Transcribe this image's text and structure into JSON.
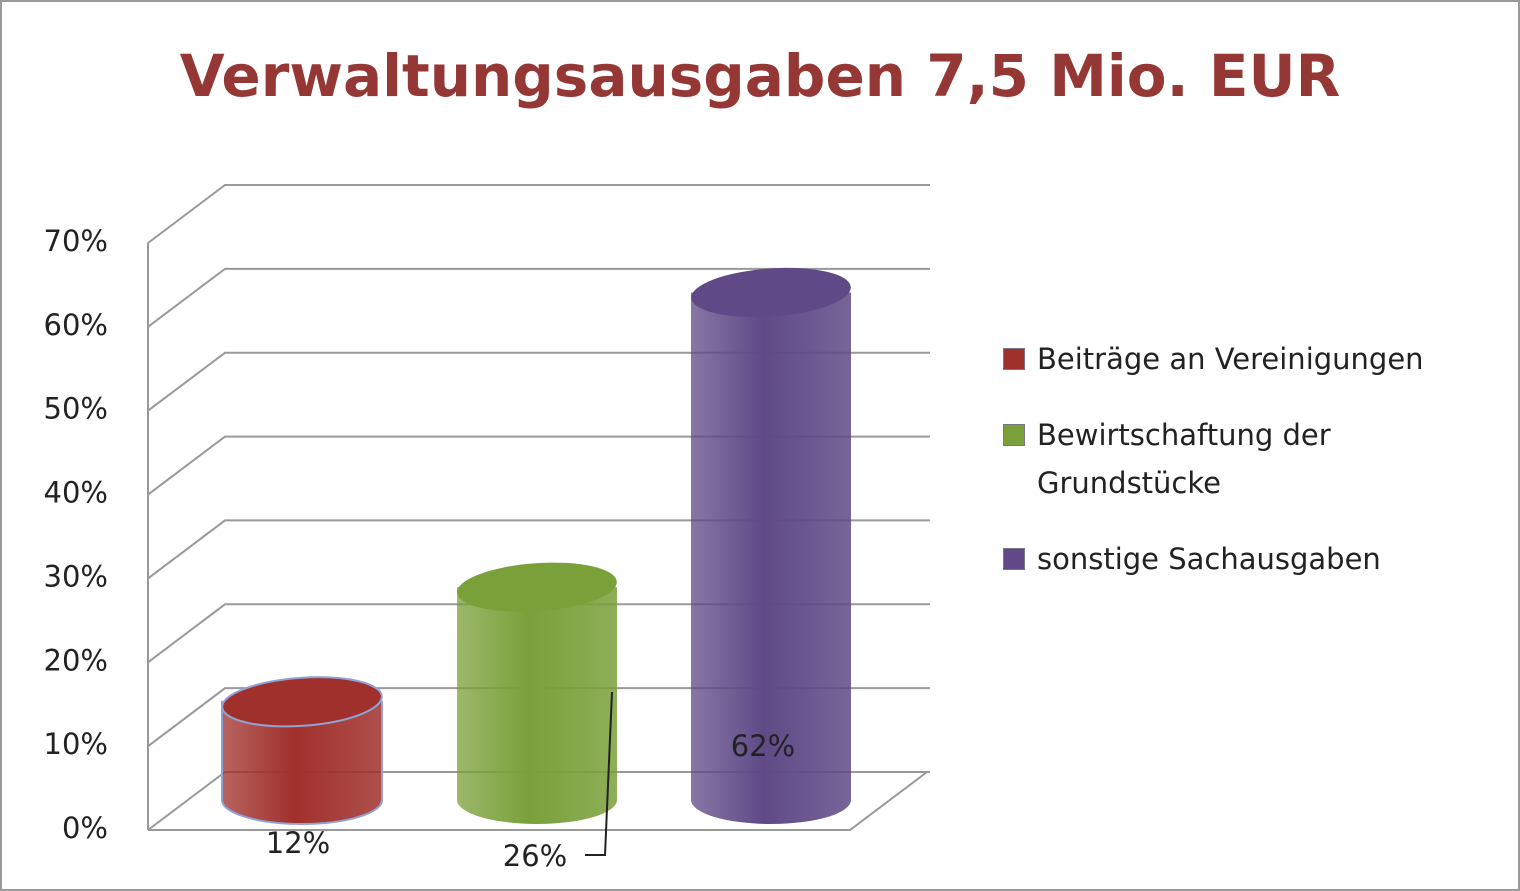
{
  "chart_data": {
    "type": "bar",
    "title": "Verwaltungsausgaben 7,5 Mio. EUR",
    "series": [
      {
        "name": "Beiträge an Vereinigungen",
        "color": "#a0302c",
        "values": [
          12
        ],
        "value_labels": [
          "12%"
        ]
      },
      {
        "name": "Bewirtschaftung der Grundstücke",
        "color": "#7aa03a",
        "values": [
          26
        ],
        "value_labels": [
          "26%"
        ]
      },
      {
        "name": "sonstige Sachausgaben",
        "color": "#5f4a87",
        "values": [
          62
        ],
        "value_labels": [
          "62%"
        ]
      }
    ],
    "ylim": [
      0,
      70
    ],
    "yticks": [
      {
        "value": 0,
        "label": "0%"
      },
      {
        "value": 10,
        "label": "10%"
      },
      {
        "value": 20,
        "label": "20%"
      },
      {
        "value": 30,
        "label": "30%"
      },
      {
        "value": 40,
        "label": "40%"
      },
      {
        "value": 50,
        "label": "50%"
      },
      {
        "value": 60,
        "label": "60%"
      },
      {
        "value": 70,
        "label": "70%"
      }
    ],
    "grid": true,
    "legend": "right"
  }
}
